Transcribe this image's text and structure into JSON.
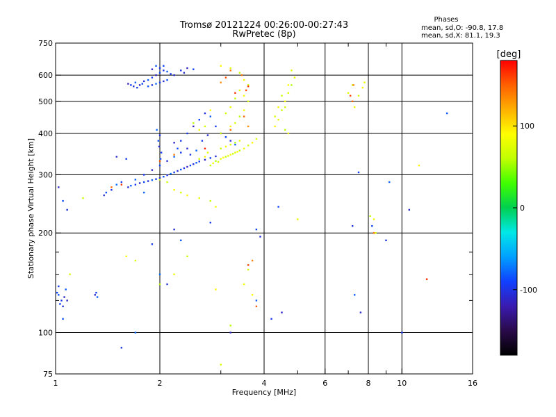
{
  "chart_data": {
    "type": "scatter",
    "title": "Tromsø 20121224 00:26:00-00:27:43",
    "subtitle": "RwPretec (8p)",
    "xlabel": "Frequency [MHz]",
    "ylabel": "Stationary phase Virtual Height [km]",
    "x_scale": "log",
    "y_scale": "log",
    "xlim": [
      1,
      16
    ],
    "ylim": [
      75,
      750
    ],
    "x_ticks": [
      1,
      2,
      4,
      6,
      8,
      10,
      16
    ],
    "x_tick_labels": [
      "1",
      "2",
      "4",
      "6",
      "8",
      "10",
      "16"
    ],
    "x_minor_ticks": [
      3,
      5,
      7,
      9
    ],
    "y_ticks": [
      75,
      100,
      200,
      300,
      400,
      500,
      600,
      750
    ],
    "y_tick_labels": [
      "75",
      "100",
      "200",
      "300",
      "400",
      "500",
      "600",
      "750"
    ],
    "y_minor_ticks": [
      125,
      150,
      175
    ],
    "grid": true,
    "phases": {
      "title": "Phases",
      "line_o": "mean, sd,O: -90.8, 17.8",
      "line_x": "mean, sd,X:  81.1, 19.3"
    },
    "colorbar": {
      "label": "[deg]",
      "range": [
        -180,
        180
      ],
      "ticks": [
        -100,
        0,
        100
      ],
      "tick_labels": [
        "-100",
        "0",
        "100"
      ],
      "colors": [
        "#000000",
        "#2a0a4a",
        "#3a1bb0",
        "#1040ff",
        "#00a0ff",
        "#00e8e8",
        "#00d050",
        "#40ff00",
        "#c0ff00",
        "#ffff00",
        "#ffb000",
        "#ff6000",
        "#ff0000"
      ]
    },
    "series": [
      {
        "values": [
          [
            1.62,
            565
          ],
          [
            1.65,
            560
          ],
          [
            1.68,
            555
          ],
          [
            1.7,
            570
          ],
          [
            1.72,
            550
          ],
          [
            1.75,
            560
          ],
          [
            1.78,
            565
          ],
          [
            1.8,
            575
          ],
          [
            1.85,
            580
          ],
          [
            1.9,
            590
          ],
          [
            1.95,
            600
          ],
          [
            2.0,
            610
          ],
          [
            2.05,
            620
          ],
          [
            2.1,
            615
          ],
          [
            2.15,
            605
          ],
          [
            2.2,
            600
          ],
          [
            1.85,
            555
          ],
          [
            1.9,
            560
          ],
          [
            1.95,
            565
          ],
          [
            2.0,
            570
          ],
          [
            2.05,
            575
          ],
          [
            2.1,
            580
          ],
          [
            2.3,
            620
          ],
          [
            2.4,
            630
          ],
          [
            2.5,
            625
          ],
          [
            2.35,
            610
          ],
          [
            1.95,
            640
          ],
          [
            2.0,
            630
          ],
          [
            1.9,
            625
          ],
          [
            2.05,
            640
          ],
          [
            1.62,
            275
          ],
          [
            1.65,
            278
          ],
          [
            1.7,
            280
          ],
          [
            1.75,
            283
          ],
          [
            1.8,
            285
          ],
          [
            1.85,
            287
          ],
          [
            1.9,
            289
          ],
          [
            1.95,
            291
          ],
          [
            2.0,
            293
          ],
          [
            2.05,
            296
          ],
          [
            2.1,
            299
          ],
          [
            2.15,
            302
          ],
          [
            2.2,
            305
          ],
          [
            2.25,
            308
          ],
          [
            2.3,
            311
          ],
          [
            2.35,
            314
          ],
          [
            2.4,
            317
          ],
          [
            2.45,
            320
          ],
          [
            2.5,
            323
          ],
          [
            2.55,
            326
          ],
          [
            2.6,
            329
          ],
          [
            2.7,
            333
          ],
          [
            2.8,
            337
          ],
          [
            2.9,
            341
          ],
          [
            1.7,
            290
          ],
          [
            1.8,
            300
          ],
          [
            1.9,
            310
          ],
          [
            2.0,
            320
          ],
          [
            2.1,
            330
          ],
          [
            2.2,
            340
          ],
          [
            2.3,
            350
          ],
          [
            2.4,
            360
          ],
          [
            1.98,
            380
          ],
          [
            2.0,
            395
          ],
          [
            1.96,
            410
          ],
          [
            2.02,
            350
          ],
          [
            1.99,
            365
          ],
          [
            2.01,
            335
          ],
          [
            2.4,
            400
          ],
          [
            2.5,
            420
          ],
          [
            2.6,
            440
          ],
          [
            2.7,
            460
          ],
          [
            2.8,
            450
          ],
          [
            2.9,
            420
          ],
          [
            3.0,
            400
          ],
          [
            3.1,
            390
          ],
          [
            3.2,
            380
          ],
          [
            3.3,
            370
          ],
          [
            2.3,
            380
          ],
          [
            2.2,
            375
          ],
          [
            2.25,
            360
          ],
          [
            2.45,
            345
          ],
          [
            2.55,
            355
          ],
          [
            2.65,
            380
          ],
          [
            2.75,
            395
          ],
          [
            1.4,
            265
          ],
          [
            1.45,
            270
          ],
          [
            1.5,
            280
          ],
          [
            1.55,
            285
          ],
          [
            1.38,
            260
          ],
          [
            1.02,
            130
          ],
          [
            1.04,
            125
          ],
          [
            1.06,
            128
          ],
          [
            1.03,
            122
          ],
          [
            1.05,
            120
          ],
          [
            1.07,
            135
          ],
          [
            1.02,
            138
          ],
          [
            1.08,
            125
          ],
          [
            1.01,
            132
          ],
          [
            1.3,
            130
          ],
          [
            1.32,
            128
          ],
          [
            1.31,
            132
          ],
          [
            1.02,
            275
          ],
          [
            1.05,
            250
          ],
          [
            1.08,
            235
          ],
          [
            1.8,
            265
          ],
          [
            1.6,
            335
          ],
          [
            1.5,
            340
          ],
          [
            1.05,
            110
          ],
          [
            2.1,
            140
          ],
          [
            2.0,
            150
          ],
          [
            1.9,
            185
          ],
          [
            2.2,
            205
          ],
          [
            2.3,
            190
          ],
          [
            2.8,
            215
          ],
          [
            3.2,
            100
          ],
          [
            3.8,
            205
          ],
          [
            3.9,
            195
          ],
          [
            3.8,
            125
          ],
          [
            4.2,
            110
          ],
          [
            4.5,
            115
          ],
          [
            4.4,
            240
          ],
          [
            7.2,
            210
          ],
          [
            7.3,
            130
          ],
          [
            7.5,
            305
          ],
          [
            7.6,
            115
          ],
          [
            8.2,
            210
          ],
          [
            9.0,
            190
          ],
          [
            9.2,
            285
          ],
          [
            10.0,
            100
          ],
          [
            10.5,
            235
          ],
          [
            13.5,
            460
          ],
          [
            1.55,
            90
          ],
          [
            1.7,
            100
          ]
        ]
      },
      {
        "values": [
          [
            2.9,
            330
          ],
          [
            3.0,
            335
          ],
          [
            3.1,
            340
          ],
          [
            3.2,
            345
          ],
          [
            3.3,
            350
          ],
          [
            3.4,
            355
          ],
          [
            3.5,
            360
          ],
          [
            3.6,
            368
          ],
          [
            3.7,
            375
          ],
          [
            3.8,
            385
          ],
          [
            2.8,
            320
          ],
          [
            2.85,
            325
          ],
          [
            2.95,
            328
          ],
          [
            3.05,
            338
          ],
          [
            3.15,
            342
          ],
          [
            3.25,
            347
          ],
          [
            3.35,
            352
          ],
          [
            2.6,
            335
          ],
          [
            2.7,
            340
          ],
          [
            2.75,
            350
          ],
          [
            3.0,
            360
          ],
          [
            3.1,
            365
          ],
          [
            3.2,
            370
          ],
          [
            3.3,
            375
          ],
          [
            3.4,
            380
          ],
          [
            3.0,
            400
          ],
          [
            3.2,
            420
          ],
          [
            3.3,
            430
          ],
          [
            3.4,
            450
          ],
          [
            3.5,
            470
          ],
          [
            3.6,
            500
          ],
          [
            3.5,
            520
          ],
          [
            3.4,
            540
          ],
          [
            3.3,
            510
          ],
          [
            3.2,
            480
          ],
          [
            3.1,
            460
          ],
          [
            3.0,
            640
          ],
          [
            3.2,
            630
          ],
          [
            3.4,
            610
          ],
          [
            3.5,
            580
          ],
          [
            3.6,
            560
          ],
          [
            4.3,
            420
          ],
          [
            4.4,
            440
          ],
          [
            4.5,
            470
          ],
          [
            4.6,
            500
          ],
          [
            4.7,
            530
          ],
          [
            4.8,
            560
          ],
          [
            4.9,
            590
          ],
          [
            4.5,
            520
          ],
          [
            4.4,
            480
          ],
          [
            4.3,
            450
          ],
          [
            4.6,
            410
          ],
          [
            4.7,
            400
          ],
          [
            4.6,
            480
          ],
          [
            4.7,
            560
          ],
          [
            4.8,
            620
          ],
          [
            2.5,
            430
          ],
          [
            2.6,
            410
          ],
          [
            2.7,
            420
          ],
          [
            2.8,
            470
          ],
          [
            2.0,
            290
          ],
          [
            2.1,
            285
          ],
          [
            2.2,
            270
          ],
          [
            2.3,
            265
          ],
          [
            2.4,
            260
          ],
          [
            2.6,
            255
          ],
          [
            2.8,
            250
          ],
          [
            2.9,
            240
          ],
          [
            1.7,
            165
          ],
          [
            2.0,
            140
          ],
          [
            2.2,
            150
          ],
          [
            2.4,
            170
          ],
          [
            2.9,
            135
          ],
          [
            3.0,
            80
          ],
          [
            3.2,
            105
          ],
          [
            3.5,
            140
          ],
          [
            3.6,
            155
          ],
          [
            3.7,
            130
          ],
          [
            7.0,
            530
          ],
          [
            7.2,
            560
          ],
          [
            7.3,
            480
          ],
          [
            7.5,
            520
          ],
          [
            7.7,
            550
          ],
          [
            7.8,
            570
          ],
          [
            8.1,
            225
          ],
          [
            8.3,
            220
          ],
          [
            8.4,
            200
          ],
          [
            11.2,
            320
          ],
          [
            5.0,
            220
          ],
          [
            1.2,
            255
          ],
          [
            1.6,
            170
          ],
          [
            1.1,
            150
          ]
        ]
      },
      {
        "values": [
          [
            3.0,
            570
          ],
          [
            3.1,
            590
          ],
          [
            3.2,
            620
          ],
          [
            3.3,
            530
          ],
          [
            3.5,
            450
          ],
          [
            3.6,
            420
          ],
          [
            3.55,
            540
          ],
          [
            3.45,
            600
          ],
          [
            3.6,
            555
          ],
          [
            7.2,
            500
          ],
          [
            7.25,
            560
          ],
          [
            7.1,
            520
          ],
          [
            8.3,
            200
          ],
          [
            11.8,
            145
          ],
          [
            3.8,
            120
          ],
          [
            3.7,
            165
          ],
          [
            3.6,
            160
          ],
          [
            3.2,
            410
          ],
          [
            2.7,
            360
          ],
          [
            2.0,
            330
          ],
          [
            2.2,
            345
          ],
          [
            1.55,
            280
          ],
          [
            1.45,
            275
          ]
        ]
      }
    ]
  }
}
